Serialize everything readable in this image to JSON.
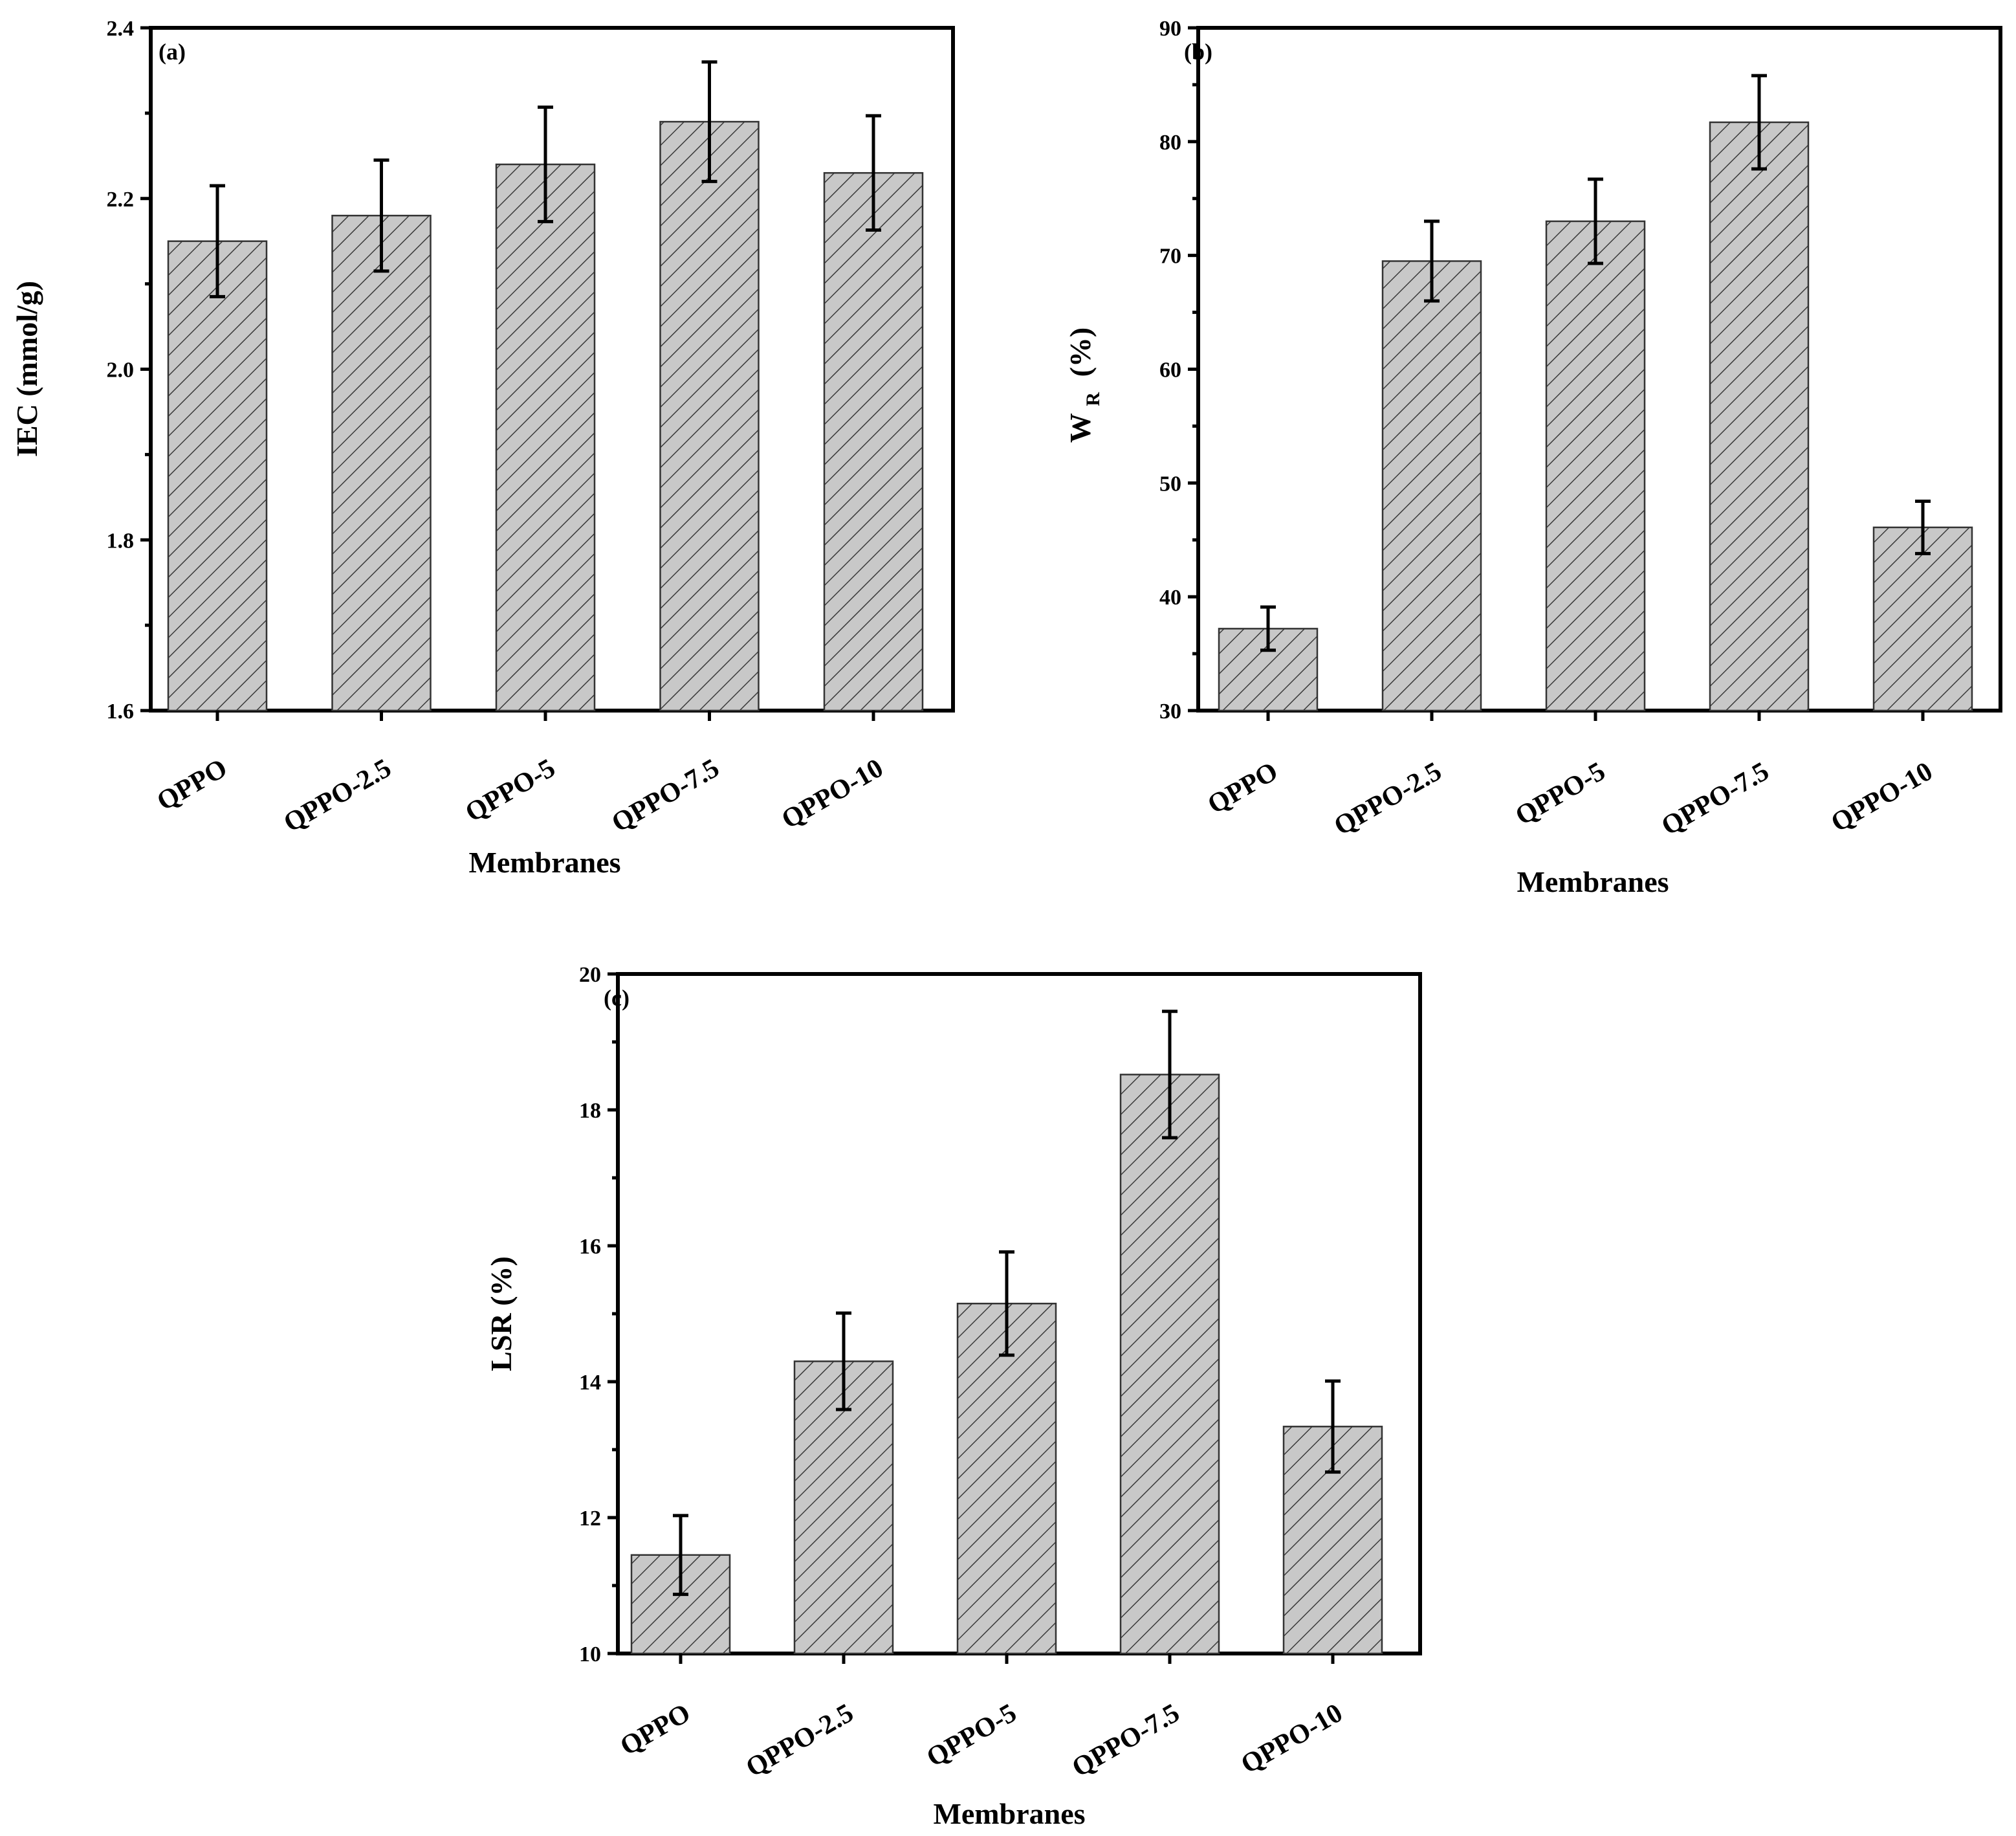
{
  "figure": {
    "panels": [
      "(a)",
      "(b)",
      "(c)"
    ]
  },
  "chart_data": [
    {
      "type": "bar",
      "panel_label": "(a)",
      "categories": [
        "QPPO",
        "QPPO-2.5",
        "QPPO-5",
        "QPPO-7.5",
        "QPPO-10"
      ],
      "values": [
        2.15,
        2.18,
        2.24,
        2.29,
        2.23
      ],
      "errors": [
        0.065,
        0.065,
        0.067,
        0.07,
        0.067
      ],
      "xlabel": "Membranes",
      "ylabel": "IEC (mmol/g)",
      "ylim": [
        1.6,
        2.4
      ],
      "yticks": [
        "1.6",
        "1.8",
        "2.0",
        "2.2",
        "2.4"
      ],
      "grid": false,
      "legend": "none"
    },
    {
      "type": "bar",
      "panel_label": "(b)",
      "categories": [
        "QPPO",
        "QPPO-2.5",
        "QPPO-5",
        "QPPO-7.5",
        "QPPO-10"
      ],
      "values": [
        37.2,
        69.5,
        73.0,
        81.7,
        46.1
      ],
      "errors": [
        1.9,
        3.5,
        3.7,
        4.1,
        2.3
      ],
      "xlabel": "Membranes",
      "ylabel": "W",
      "ylabel_sub": "R",
      "ylabel_suffix": "(%)",
      "ylim": [
        30,
        90
      ],
      "yticks": [
        "30",
        "40",
        "50",
        "60",
        "70",
        "80",
        "90"
      ],
      "grid": false,
      "legend": "none"
    },
    {
      "type": "bar",
      "panel_label": "(c)",
      "categories": [
        "QPPO",
        "QPPO-2.5",
        "QPPO-5",
        "QPPO-7.5",
        "QPPO-10"
      ],
      "values": [
        11.45,
        14.3,
        15.15,
        18.52,
        13.34
      ],
      "errors": [
        0.58,
        0.71,
        0.76,
        0.93,
        0.67
      ],
      "xlabel": "Membranes",
      "ylabel": "LSR (%)",
      "ylim": [
        10,
        20
      ],
      "yticks": [
        "10",
        "12",
        "14",
        "16",
        "18",
        "20"
      ],
      "grid": false,
      "legend": "none"
    }
  ]
}
